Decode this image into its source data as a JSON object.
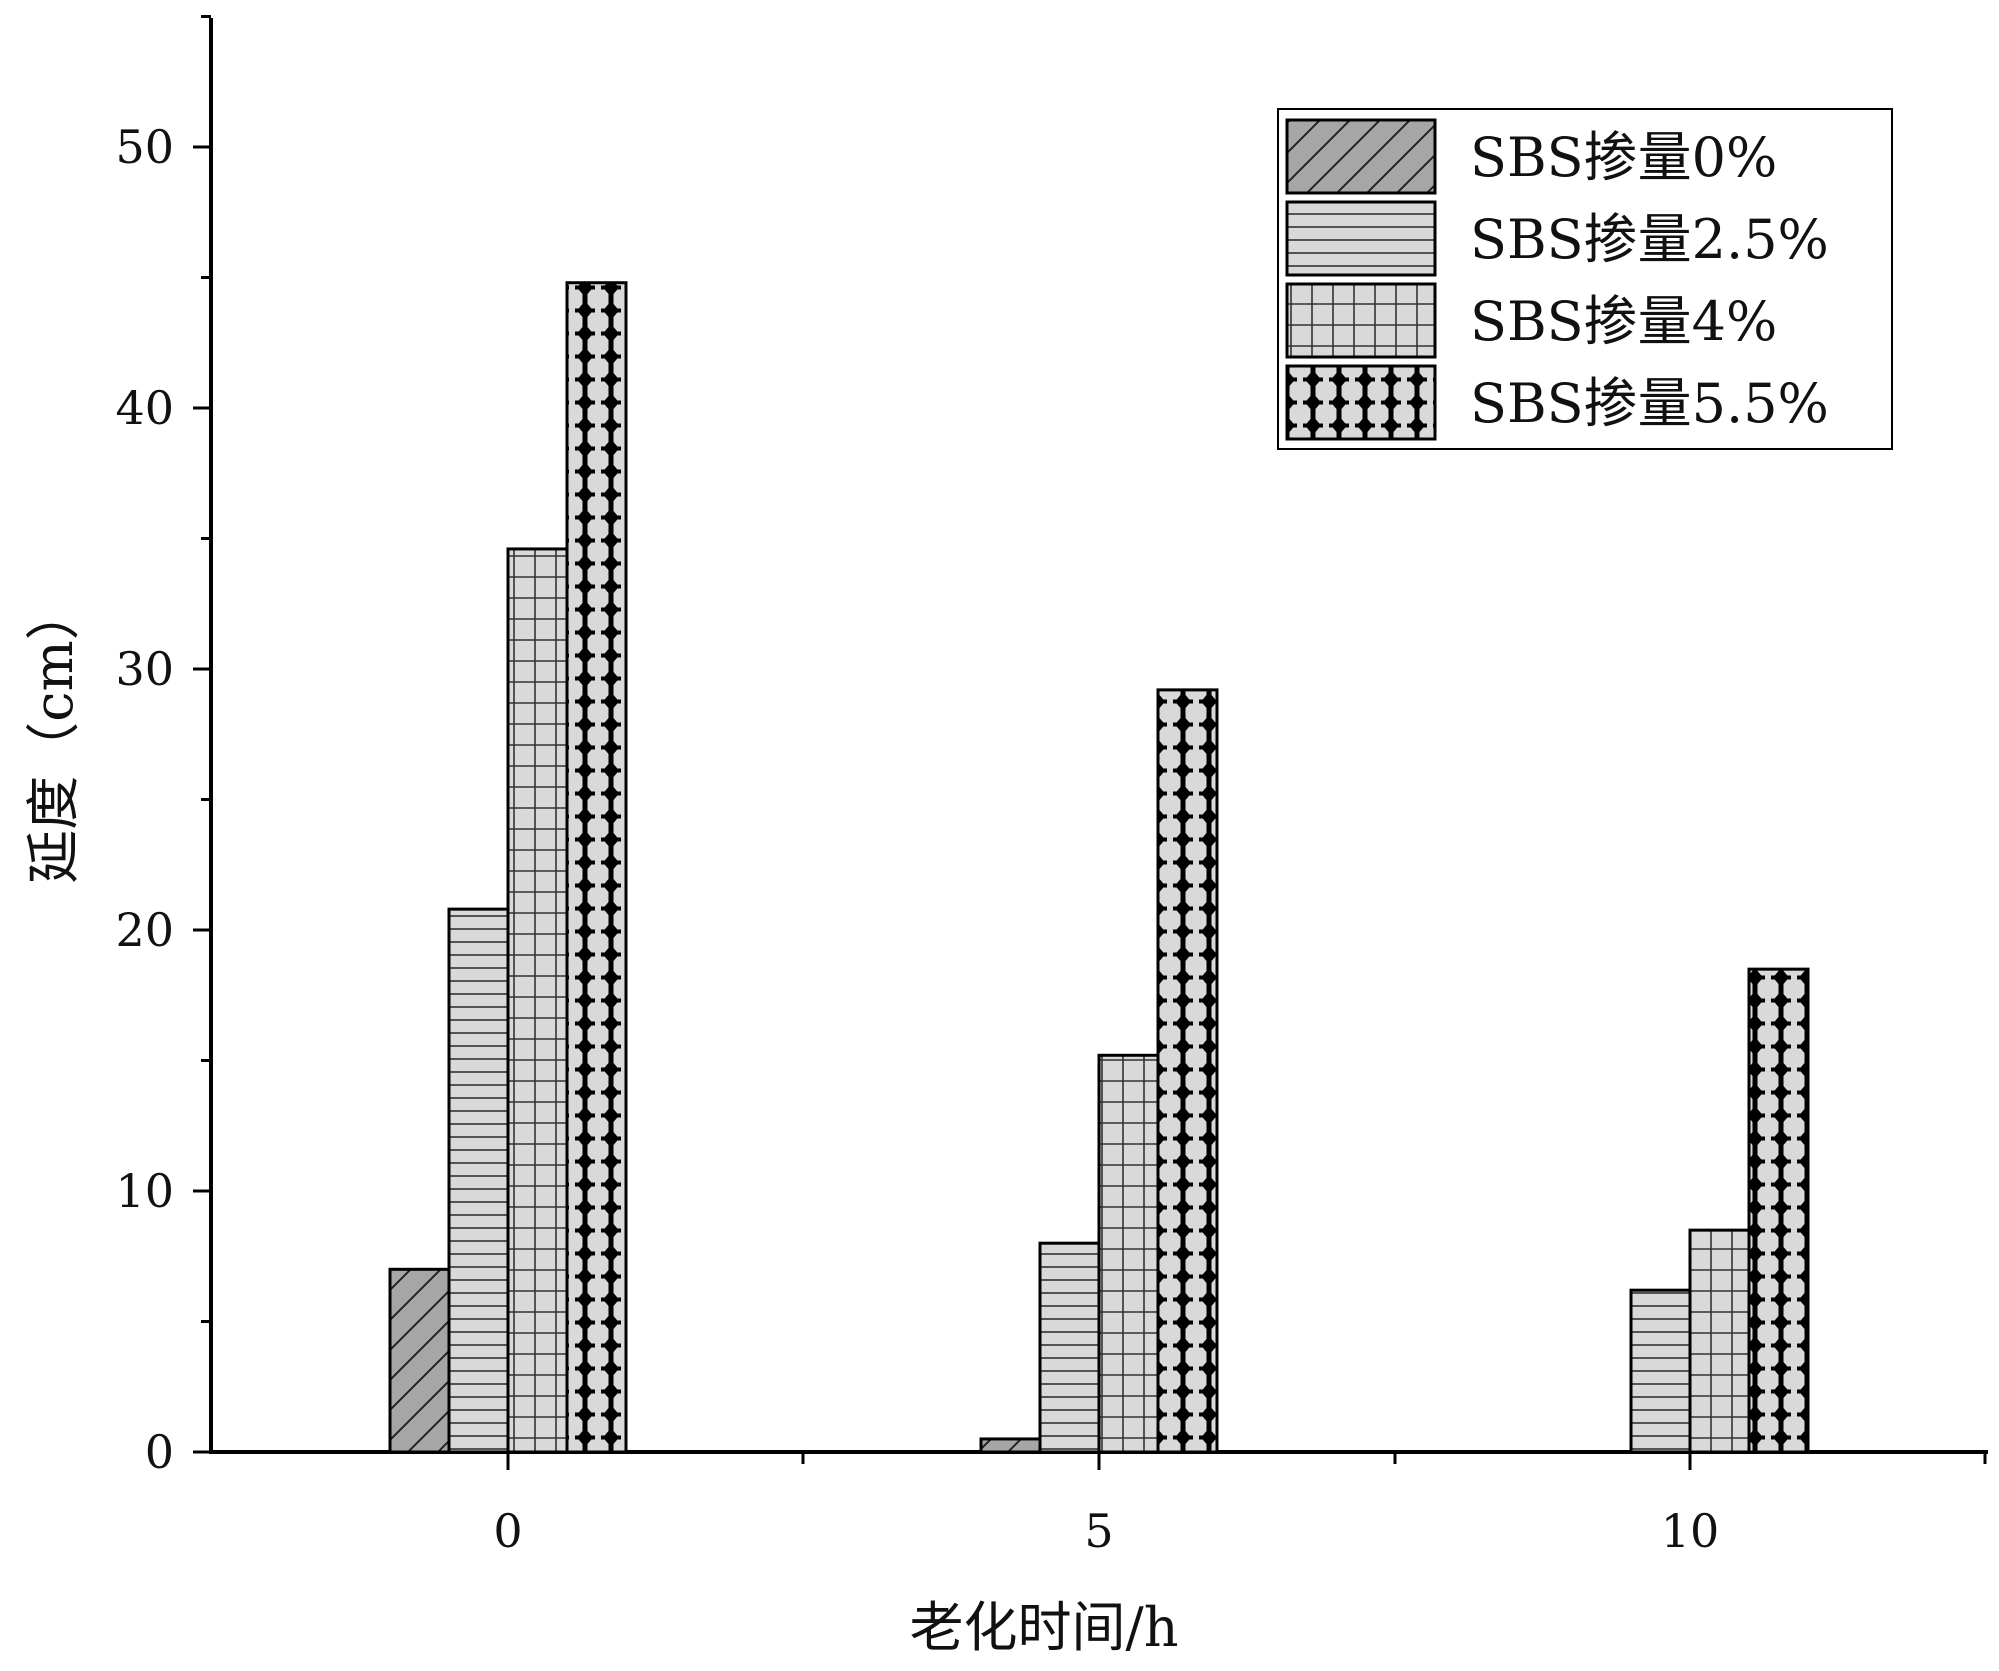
{
  "chart_data": {
    "type": "bar",
    "title": "",
    "xlabel": "老化时间/h",
    "ylabel": "延度（cm）",
    "categories": [
      "0",
      "5",
      "10"
    ],
    "ylim": [
      0,
      55
    ],
    "yticks": [
      "0",
      "10",
      "20",
      "30",
      "40",
      "50"
    ],
    "grid": false,
    "legend_position": "top-right",
    "series": [
      {
        "name": "SBS掺量0%",
        "values": [
          7.0,
          0.5,
          0
        ],
        "pattern": "diagonal-hatch",
        "fill": "#a6a6a6"
      },
      {
        "name": "SBS掺量2.5%",
        "values": [
          20.8,
          8.0,
          6.2
        ],
        "pattern": "horizontal-lines",
        "fill": "#d9d9d9"
      },
      {
        "name": "SBS掺量4%",
        "values": [
          34.6,
          15.2,
          8.5
        ],
        "pattern": "grid",
        "fill": "#d9d9d9"
      },
      {
        "name": "SBS掺量5.5%",
        "values": [
          44.8,
          29.2,
          18.5
        ],
        "pattern": "diamond-dots",
        "fill": "#d9d9d9"
      }
    ]
  }
}
